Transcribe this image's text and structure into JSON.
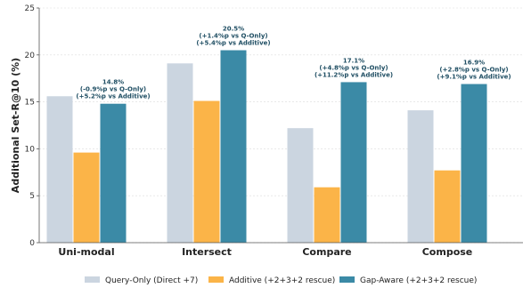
{
  "chart_data": {
    "type": "bar",
    "categories": [
      "Uni-modal",
      "Intersect",
      "Compare",
      "Compose"
    ],
    "series": [
      {
        "name": "Query-Only (Direct +7)",
        "values": [
          15.6,
          19.1,
          12.2,
          14.1
        ],
        "color": "#cbd5e0"
      },
      {
        "name": "Additive (+2+3+2 rescue)",
        "values": [
          9.6,
          15.1,
          5.9,
          7.7
        ],
        "color": "#fbb448"
      },
      {
        "name": "Gap-Aware (+2+3+2 rescue)",
        "values": [
          14.8,
          20.5,
          17.1,
          16.9
        ],
        "color": "#3b8aa6"
      }
    ],
    "annotations": [
      [
        "14.8%",
        "(-0.9%p vs Q-Only)",
        "(+5.2%p vs Additive)"
      ],
      [
        "20.5%",
        "(+1.4%p vs Q-Only)",
        "(+5.4%p vs Additive)"
      ],
      [
        "17.1%",
        "(+4.8%p vs Q-Only)",
        "(+11.2%p vs Additive)"
      ],
      [
        "16.9%",
        "(+2.8%p vs Q-Only)",
        "(+9.1%p vs Additive)"
      ]
    ],
    "ylabel": "Additional Set-R@10 (%)",
    "xlabel": "",
    "ylim": [
      0,
      25
    ],
    "yticks": [
      "0",
      "5",
      "10",
      "15",
      "20",
      "25"
    ],
    "grid": true,
    "legend_position": "bottom-center"
  }
}
